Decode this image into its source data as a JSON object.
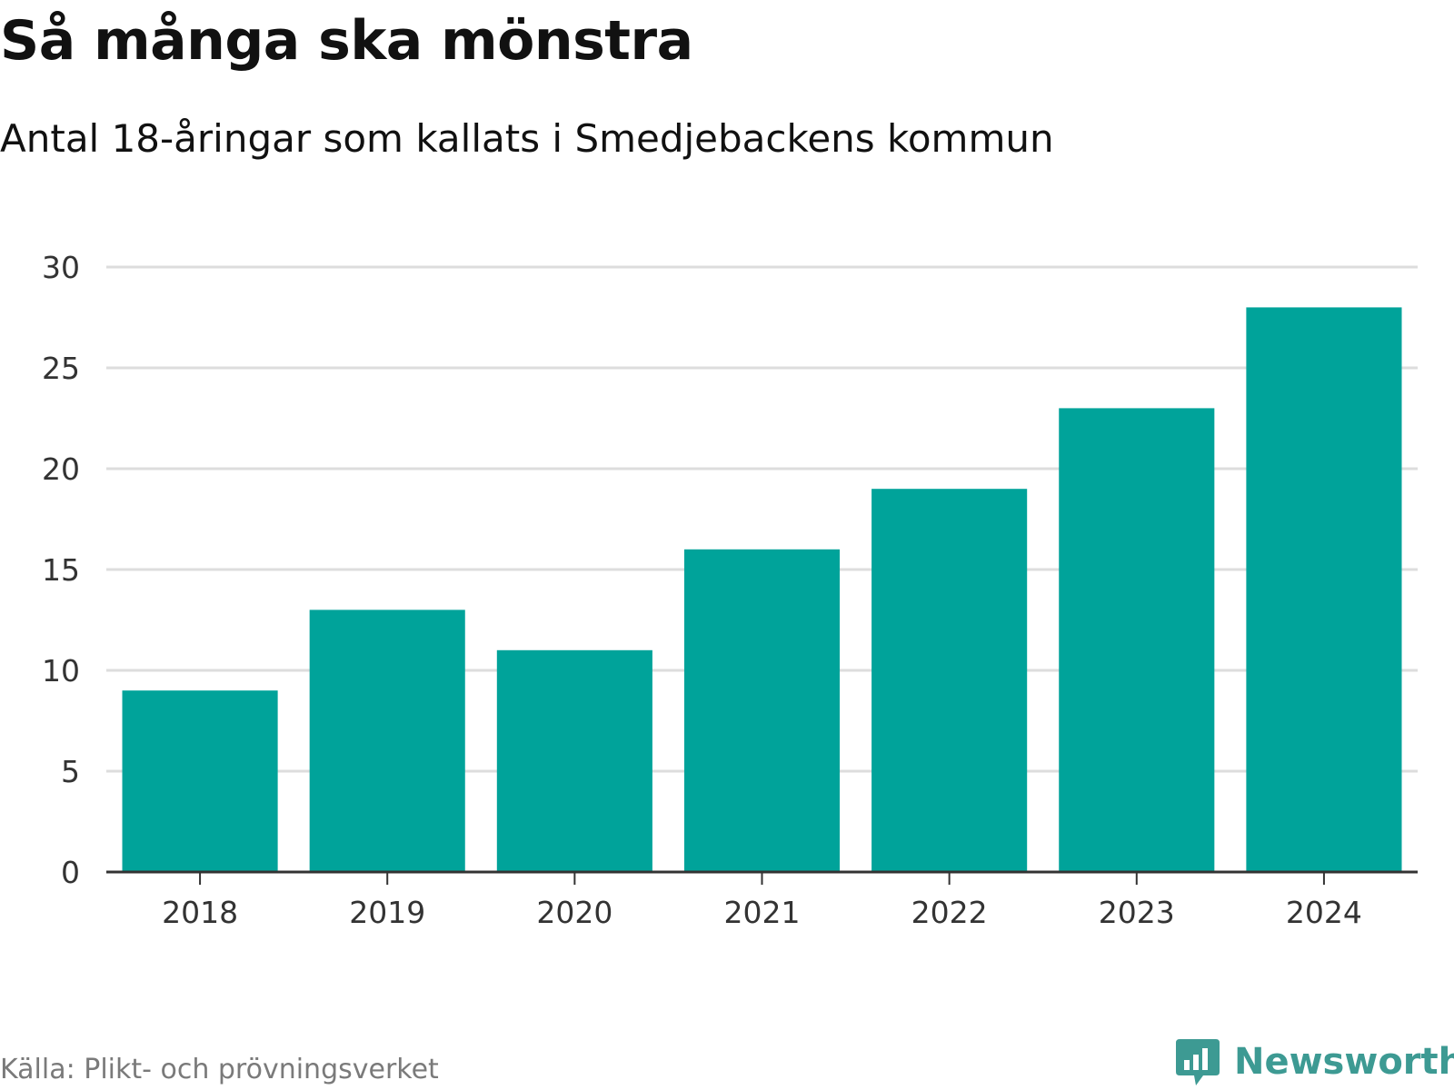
{
  "header": {
    "title": "Så många ska mönstra",
    "subtitle": "Antal 18-åringar som kallats i Smedjebackens kommun"
  },
  "footer": {
    "source": "Källa: Plikt- och prövningsverket",
    "brand": "Newsworthy"
  },
  "colors": {
    "bar": "#00a39a",
    "grid": "#dddddd",
    "axis": "#333333",
    "brand": "#3d9a93"
  },
  "chart_data": {
    "type": "bar",
    "title": "Så många ska mönstra",
    "subtitle": "Antal 18-åringar som kallats i Smedjebackens kommun",
    "xlabel": "",
    "ylabel": "",
    "categories": [
      "2018",
      "2019",
      "2020",
      "2021",
      "2022",
      "2023",
      "2024"
    ],
    "values": [
      9,
      13,
      11,
      16,
      19,
      23,
      28
    ],
    "ylim": [
      0,
      30
    ],
    "yticks": [
      0,
      5,
      10,
      15,
      20,
      25,
      30
    ],
    "grid": true,
    "legend": "none"
  }
}
